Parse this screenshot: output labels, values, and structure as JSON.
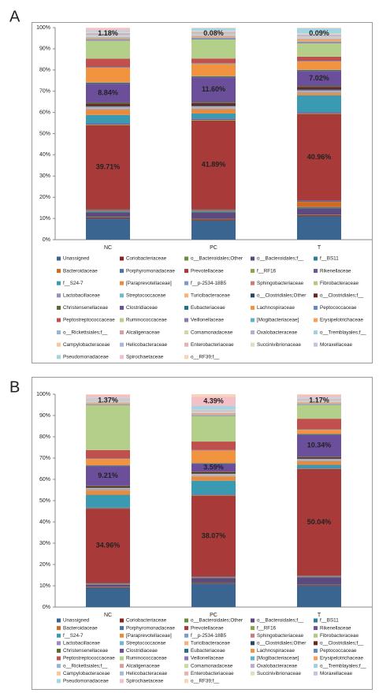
{
  "chart_data": [
    {
      "type": "bar",
      "stacked": true,
      "title": "A",
      "categories": [
        "NC",
        "PC",
        "T"
      ],
      "ylim": [
        0,
        100
      ],
      "yticks": [
        {
          "value": 0,
          "label": "0%"
        },
        {
          "value": 10,
          "label": "10%"
        },
        {
          "value": 20,
          "label": "20%"
        },
        {
          "value": 30,
          "label": "30%"
        },
        {
          "value": 40,
          "label": "40%"
        },
        {
          "value": 50,
          "label": "50%"
        },
        {
          "value": 60,
          "label": "60%"
        },
        {
          "value": 70,
          "label": "70%"
        },
        {
          "value": 80,
          "label": "80%"
        },
        {
          "value": 90,
          "label": "90%"
        },
        {
          "value": 100,
          "label": "100%"
        }
      ],
      "grid": false,
      "series": [
        {
          "name": "Unassigned",
          "color": "#3A6590",
          "values": [
            10,
            9,
            11
          ]
        },
        {
          "name": "Coriobacteriaceae",
          "color": "#8B2323",
          "values": [
            0.5,
            0.5,
            0.5
          ]
        },
        {
          "name": "o__Bacteroidales;Other",
          "color": "#6E8B3D",
          "values": [
            0.3,
            0.3,
            0.3
          ]
        },
        {
          "name": "o__Bacteroidales;f__",
          "color": "#5C4A7F",
          "values": [
            2,
            3,
            3
          ]
        },
        {
          "name": "f__BS11",
          "color": "#2B7F96",
          "values": [
            0.5,
            0.5,
            0.5
          ]
        },
        {
          "name": "Bacteroidaceae",
          "color": "#D2691E",
          "values": [
            0.5,
            0.5,
            2.5
          ]
        },
        {
          "name": "Porphyromonadaceae",
          "color": "#4A74A8",
          "values": [
            0.5,
            0.5,
            0.5
          ]
        },
        {
          "name": "Prevotellaceae",
          "color": "#A83B3A",
          "values": [
            39.71,
            41.89,
            40.96
          ],
          "value_labels": [
            "39.71%",
            "41.89%",
            "40.96%"
          ]
        },
        {
          "name": "f__RF16",
          "color": "#86A649",
          "values": [
            0.3,
            0.3,
            0.3
          ]
        },
        {
          "name": "Rikenellaceae",
          "color": "#6F5595",
          "values": [
            0.5,
            0.5,
            0.5
          ]
        },
        {
          "name": "f__S24-7",
          "color": "#3A9AB2",
          "values": [
            4,
            2.5,
            8
          ]
        },
        {
          "name": "[Paraprevotellaceae]",
          "color": "#EC8A3C",
          "values": [
            2.5,
            2,
            1
          ]
        },
        {
          "name": "f__p-2534-18B5",
          "color": "#7D9CCB",
          "values": [
            0.3,
            0.3,
            0.3
          ]
        },
        {
          "name": "Sphingobacteriaceae",
          "color": "#CD7B79",
          "values": [
            0.2,
            0.2,
            0.2
          ]
        },
        {
          "name": "Fibrobacteraceae",
          "color": "#B2CB7E",
          "values": [
            0.2,
            0.2,
            0.2
          ]
        },
        {
          "name": "Lactobacillaceae",
          "color": "#9D8AC0",
          "values": [
            0.3,
            0.3,
            0.3
          ]
        },
        {
          "name": "Streptococcaceae",
          "color": "#6FB9CF",
          "values": [
            0.2,
            0.2,
            0.2
          ]
        },
        {
          "name": "Turicibacteraceae",
          "color": "#F7B27A",
          "values": [
            0.2,
            0.2,
            0.2
          ]
        },
        {
          "name": "o__Clostridiales;Other",
          "color": "#26466C",
          "values": [
            0.5,
            0.5,
            0.5
          ]
        },
        {
          "name": "o__Clostridiales;f__",
          "color": "#6E2625",
          "values": [
            1,
            1,
            1
          ]
        },
        {
          "name": "Christensenellaceae",
          "color": "#556B2F",
          "values": [
            0.5,
            0.5,
            0.5
          ]
        },
        {
          "name": "Clostridiaceae",
          "color": "#6B4F9A",
          "values": [
            8.84,
            11.6,
            7.02
          ],
          "value_labels": [
            "8.84%",
            "11.60%",
            "7.02%"
          ]
        },
        {
          "name": "Eubacteriaceae",
          "color": "#217087",
          "values": [
            0.5,
            0.5,
            0.5
          ]
        },
        {
          "name": "Lachnospiraceae",
          "color": "#F29340",
          "values": [
            7,
            6,
            4
          ]
        },
        {
          "name": "Peptococcaceae",
          "color": "#5F8BC5",
          "values": [
            0.3,
            0.3,
            0.3
          ]
        },
        {
          "name": "Peptostreptococcaceae",
          "color": "#C0504D",
          "values": [
            4,
            2.13,
            2
          ]
        },
        {
          "name": "Ruminococcaceae",
          "color": "#B4CF8A",
          "values": [
            8.48,
            9,
            6.33
          ]
        },
        {
          "name": "Veillonellaceae",
          "color": "#8C79B1",
          "values": [
            0.5,
            0.5,
            0.5
          ]
        },
        {
          "name": "[Mogibacteriaceae]",
          "color": "#5CB3CD",
          "values": [
            0.3,
            0.3,
            0.3
          ]
        },
        {
          "name": "Erysipelotrichaceae",
          "color": "#F6A05A",
          "values": [
            0.5,
            0.5,
            1
          ]
        },
        {
          "name": "o__Rickettsiales;f__",
          "color": "#97B3DB",
          "values": [
            0.3,
            0.3,
            0.3
          ]
        },
        {
          "name": "Alcaligenaceae",
          "color": "#DB9D9B",
          "values": [
            0.2,
            0.2,
            0.2
          ]
        },
        {
          "name": "Comamonadaceae",
          "color": "#C8DBA5",
          "values": [
            0.2,
            0.2,
            0.2
          ]
        },
        {
          "name": "Oxalobacteraceae",
          "color": "#B8ACD2",
          "values": [
            0.2,
            0.2,
            0.2
          ]
        },
        {
          "name": "o__Tremblayales;f__",
          "color": "#9FD1E0",
          "values": [
            0.2,
            0.2,
            0.2
          ]
        },
        {
          "name": "Campylobacteraceae",
          "color": "#F9C69C",
          "values": [
            0.3,
            0.3,
            0.3
          ]
        },
        {
          "name": "Helicobacteraceae",
          "color": "#A5B9DA",
          "values": [
            0.5,
            0.5,
            0.5
          ]
        },
        {
          "name": "Enterobacteriaceae",
          "color": "#E4B3B2",
          "values": [
            0.5,
            0.5,
            0.5
          ]
        },
        {
          "name": "Succinivibrionaceae",
          "color": "#D4E3BB",
          "values": [
            0.3,
            0.3,
            0.3
          ]
        },
        {
          "name": "Moraxellaceae",
          "color": "#C9BFDF",
          "values": [
            0.2,
            0.2,
            0.2
          ]
        },
        {
          "name": "Pseudomonadaceae",
          "color": "#A3D6E5",
          "values": [
            0.5,
            1,
            2.3
          ]
        },
        {
          "name": "Spirochaetaceae",
          "color": "#F3C0C8",
          "values": [
            1.18,
            0.08,
            0.09
          ],
          "value_labels": [
            "1.18%",
            "0.08%",
            "0.09%"
          ]
        },
        {
          "name": "o__RF39;f__",
          "color": "#F9D5B8",
          "values": [
            0.3,
            0.3,
            0.3
          ]
        }
      ]
    },
    {
      "type": "bar",
      "stacked": true,
      "title": "B",
      "categories": [
        "NC",
        "PC",
        "T"
      ],
      "ylim": [
        0,
        100
      ],
      "yticks": [
        {
          "value": 0,
          "label": "0%"
        },
        {
          "value": 10,
          "label": "10%"
        },
        {
          "value": 20,
          "label": "20%"
        },
        {
          "value": 30,
          "label": "30%"
        },
        {
          "value": 40,
          "label": "40%"
        },
        {
          "value": 50,
          "label": "50%"
        },
        {
          "value": 60,
          "label": "60%"
        },
        {
          "value": 70,
          "label": "70%"
        },
        {
          "value": 80,
          "label": "80%"
        },
        {
          "value": 90,
          "label": "90%"
        },
        {
          "value": 100,
          "label": "100%"
        }
      ],
      "grid": false,
      "series": [
        {
          "name": "Unassigned",
          "color": "#3A6590",
          "values": [
            9,
            11,
            10
          ]
        },
        {
          "name": "Coriobacteriaceae",
          "color": "#8B2323",
          "values": [
            0.3,
            0.3,
            0.3
          ]
        },
        {
          "name": "o__Bacteroidales;Other",
          "color": "#6E8B3D",
          "values": [
            0.2,
            0.2,
            0.2
          ]
        },
        {
          "name": "o__Bacteroidales;f__",
          "color": "#5C4A7F",
          "values": [
            1,
            2,
            3.5
          ]
        },
        {
          "name": "f__BS11",
          "color": "#2B7F96",
          "values": [
            0.2,
            0.2,
            0.2
          ]
        },
        {
          "name": "Bacteroidaceae",
          "color": "#D2691E",
          "values": [
            0.3,
            0.3,
            0.3
          ]
        },
        {
          "name": "Porphyromonadaceae",
          "color": "#4A74A8",
          "values": [
            0.3,
            0.3,
            0.3
          ]
        },
        {
          "name": "Prevotellaceae",
          "color": "#A83B3A",
          "values": [
            34.96,
            38.07,
            50.04
          ],
          "value_labels": [
            "34.96%",
            "38.07%",
            "50.04%"
          ]
        },
        {
          "name": "f__RF16",
          "color": "#86A649",
          "values": [
            0.2,
            0.2,
            0.2
          ]
        },
        {
          "name": "Rikenellaceae",
          "color": "#6F5595",
          "values": [
            0.3,
            0.3,
            0.3
          ]
        },
        {
          "name": "f__S24-7",
          "color": "#3A9AB2",
          "values": [
            6,
            6.5,
            1.5
          ]
        },
        {
          "name": "[Paraprevotellaceae]",
          "color": "#EC8A3C",
          "values": [
            2,
            2,
            1.5
          ]
        },
        {
          "name": "f__p-2534-18B5",
          "color": "#7D9CCB",
          "values": [
            0.2,
            0.2,
            0.2
          ]
        },
        {
          "name": "Sphingobacteriaceae",
          "color": "#CD7B79",
          "values": [
            0.2,
            0.2,
            0.2
          ]
        },
        {
          "name": "Fibrobacteraceae",
          "color": "#B2CB7E",
          "values": [
            0.2,
            0.2,
            0.2
          ]
        },
        {
          "name": "Lactobacillaceae",
          "color": "#9D8AC0",
          "values": [
            0.2,
            0.2,
            0.2
          ]
        },
        {
          "name": "Streptococcaceae",
          "color": "#6FB9CF",
          "values": [
            0.2,
            0.2,
            0.2
          ]
        },
        {
          "name": "Turicibacteraceae",
          "color": "#F7B27A",
          "values": [
            0.2,
            0.2,
            0.2
          ]
        },
        {
          "name": "o__Clostridiales;Other",
          "color": "#26466C",
          "values": [
            0.3,
            0.3,
            0.3
          ]
        },
        {
          "name": "o__Clostridiales;f__",
          "color": "#6E2625",
          "values": [
            0.5,
            0.5,
            0.5
          ]
        },
        {
          "name": "Christensenellaceae",
          "color": "#556B2F",
          "values": [
            0.3,
            0.3,
            0.3
          ]
        },
        {
          "name": "Clostridiaceae",
          "color": "#6B4F9A",
          "values": [
            9.21,
            3.59,
            10.34
          ],
          "value_labels": [
            "9.21%",
            "3.59%",
            "10.34%"
          ]
        },
        {
          "name": "Eubacteriaceae",
          "color": "#217087",
          "values": [
            0.3,
            0.3,
            0.3
          ]
        },
        {
          "name": "Lachnospiraceae",
          "color": "#F29340",
          "values": [
            3,
            6,
            2
          ]
        },
        {
          "name": "Peptococcaceae",
          "color": "#5F8BC5",
          "values": [
            0.2,
            0.2,
            0.2
          ]
        },
        {
          "name": "Peptostreptococcaceae",
          "color": "#C0504D",
          "values": [
            4,
            4,
            5
          ]
        },
        {
          "name": "Ruminococcaceae",
          "color": "#B4CF8A",
          "values": [
            21,
            12,
            6.5
          ]
        },
        {
          "name": "Veillonellaceae",
          "color": "#8C79B1",
          "values": [
            0.3,
            0.3,
            0.3
          ]
        },
        {
          "name": "[Mogibacteriaceae]",
          "color": "#5CB3CD",
          "values": [
            0.2,
            0.2,
            0.2
          ]
        },
        {
          "name": "Erysipelotrichaceae",
          "color": "#F6A05A",
          "values": [
            0.5,
            0.5,
            0.5
          ]
        },
        {
          "name": "o__Rickettsiales;f__",
          "color": "#97B3DB",
          "values": [
            0.2,
            0.2,
            0.2
          ]
        },
        {
          "name": "Alcaligenaceae",
          "color": "#DB9D9B",
          "values": [
            0.2,
            0.2,
            0.2
          ]
        },
        {
          "name": "Comamonadaceae",
          "color": "#C8DBA5",
          "values": [
            0.2,
            0.2,
            0.2
          ]
        },
        {
          "name": "Oxalobacteraceae",
          "color": "#B8ACD2",
          "values": [
            0.2,
            0.2,
            0.2
          ]
        },
        {
          "name": "o__Tremblayales;f__",
          "color": "#9FD1E0",
          "values": [
            0.2,
            0.2,
            0.2
          ]
        },
        {
          "name": "Campylobacteraceae",
          "color": "#F9C69C",
          "values": [
            0.2,
            0.2,
            0.2
          ]
        },
        {
          "name": "Helicobacteraceae",
          "color": "#A5B9DA",
          "values": [
            0.3,
            0.3,
            0.3
          ]
        },
        {
          "name": "Enterobacteriaceae",
          "color": "#E4B3B2",
          "values": [
            0.3,
            0.3,
            0.3
          ]
        },
        {
          "name": "Succinivibrionaceae",
          "color": "#D4E3BB",
          "values": [
            0.2,
            0.2,
            0.2
          ]
        },
        {
          "name": "Moraxellaceae",
          "color": "#C9BFDF",
          "values": [
            0.2,
            0.2,
            0.2
          ]
        },
        {
          "name": "Pseudomonadaceae",
          "color": "#A3D6E5",
          "values": [
            0.3,
            1.5,
            0.3
          ]
        },
        {
          "name": "Spirochaetaceae",
          "color": "#F3C0C8",
          "values": [
            1.37,
            4.39,
            1.17
          ],
          "value_labels": [
            "1.37%",
            "4.39%",
            "1.17%"
          ]
        },
        {
          "name": "o__RF39;f__",
          "color": "#F9D5B8",
          "values": [
            0.33,
            1.15,
            0.35
          ]
        }
      ]
    }
  ]
}
